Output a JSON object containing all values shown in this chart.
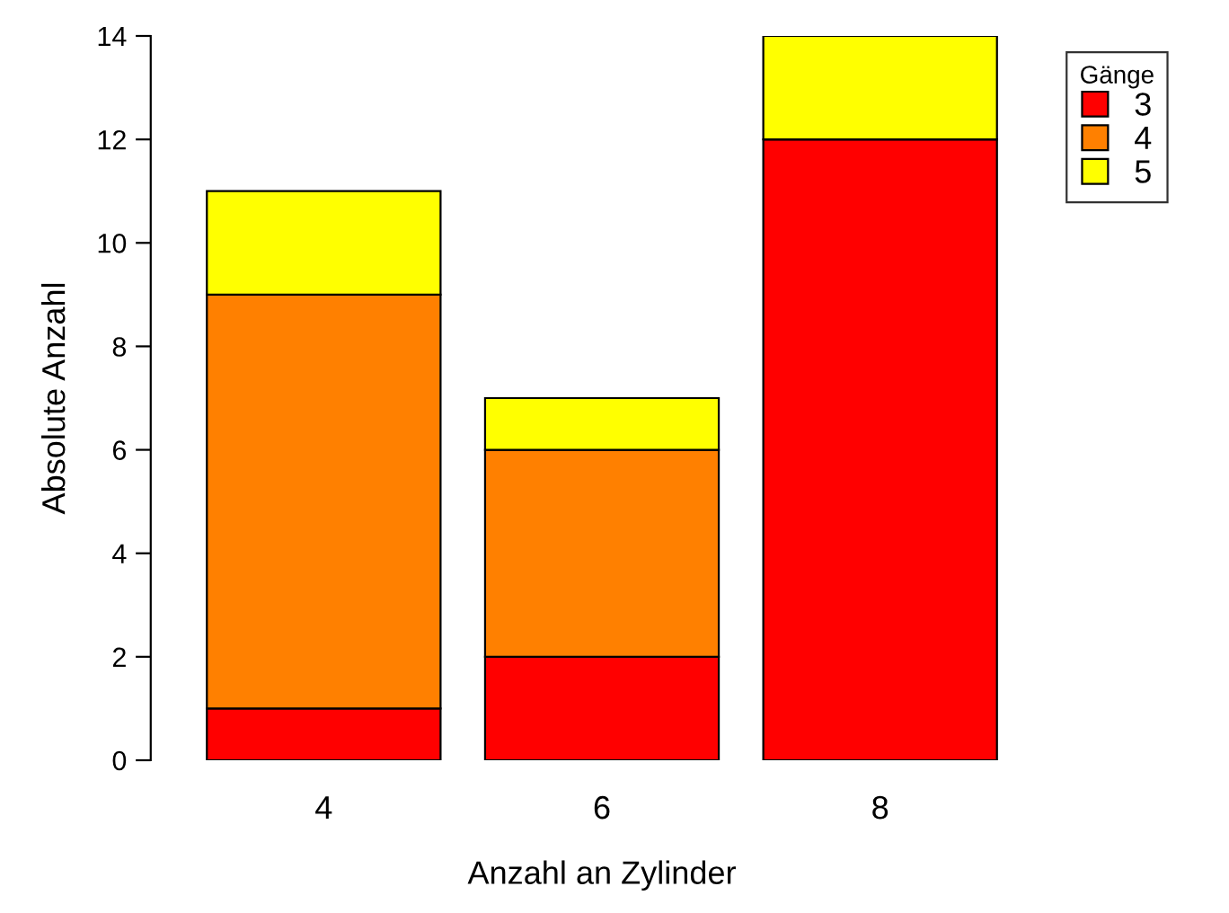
{
  "chart_data": {
    "type": "bar",
    "stacked": true,
    "xlabel": "Anzahl an Zylinder",
    "ylabel": "Absolute Anzahl",
    "legend_title": "Gänge",
    "legend": "top right",
    "categories": [
      "4",
      "6",
      "8"
    ],
    "series": [
      {
        "name": "3",
        "color": "#ff0000",
        "values": [
          1,
          2,
          12
        ]
      },
      {
        "name": "4",
        "color": "#ff8000",
        "values": [
          8,
          4,
          0
        ]
      },
      {
        "name": "5",
        "color": "#ffff00",
        "values": [
          2,
          1,
          2
        ]
      }
    ],
    "ylim": [
      0,
      14
    ],
    "yticks": [
      0,
      2,
      4,
      6,
      8,
      10,
      12,
      14
    ],
    "grid": false
  }
}
